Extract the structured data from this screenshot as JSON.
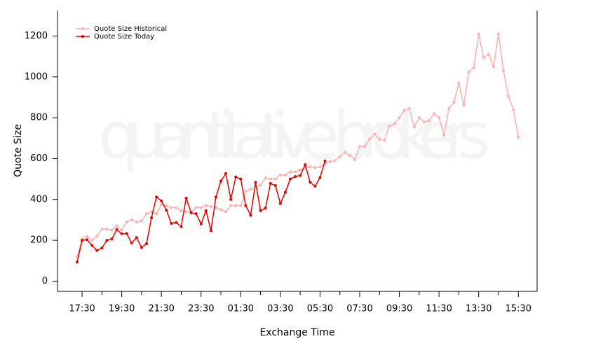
{
  "chart_data": {
    "type": "line",
    "watermark": "quantitative brokers",
    "x_label": "Exchange Time",
    "y_label": "Quote Size",
    "categories": [
      null,
      "17:30",
      null,
      null,
      null,
      null,
      null,
      null,
      null,
      "19:30",
      null,
      null,
      null,
      null,
      null,
      null,
      null,
      "21:30",
      null,
      null,
      null,
      null,
      null,
      null,
      null,
      "23:30",
      null,
      null,
      null,
      null,
      null,
      null,
      null,
      "01:30",
      null,
      null,
      null,
      null,
      null,
      null,
      null,
      "03:30",
      null,
      null,
      null,
      null,
      null,
      null,
      null,
      "05:30",
      null,
      null,
      null,
      null,
      null,
      null,
      null,
      "07:30",
      null,
      null,
      null,
      null,
      null,
      null,
      null,
      "09:30",
      null,
      null,
      null,
      null,
      null,
      null,
      null,
      "11:30",
      null,
      null,
      null,
      null,
      null,
      null,
      null,
      "13:30",
      null,
      null,
      null,
      null,
      null,
      null,
      null,
      "15:30"
    ],
    "series": [
      {
        "name": "Quote Size Historical",
        "color": "#ffb0b0",
        "values": [
          120,
          205,
          220,
          200,
          220,
          255,
          255,
          250,
          270,
          250,
          290,
          300,
          290,
          295,
          330,
          340,
          330,
          375,
          370,
          360,
          360,
          345,
          340,
          340,
          360,
          360,
          370,
          365,
          360,
          350,
          340,
          370,
          370,
          370,
          440,
          450,
          460,
          470,
          505,
          500,
          500,
          520,
          520,
          535,
          535,
          545,
          555,
          560,
          555,
          560,
          575,
          585,
          590,
          610,
          630,
          615,
          595,
          660,
          660,
          695,
          720,
          695,
          690,
          760,
          770,
          800,
          835,
          845,
          755,
          800,
          780,
          785,
          820,
          800,
          715,
          845,
          875,
          970,
          860,
          1025,
          1045,
          1210,
          1095,
          1110,
          1050,
          1210,
          1030,
          905,
          840,
          705
        ]
      },
      {
        "name": "Quote Size Today",
        "color": "#e00000",
        "values": [
          93,
          200,
          203,
          175,
          150,
          162,
          200,
          207,
          252,
          232,
          233,
          187,
          213,
          165,
          183,
          310,
          412,
          393,
          348,
          283,
          287,
          267,
          407,
          335,
          330,
          280,
          345,
          247,
          412,
          490,
          527,
          400,
          510,
          500,
          370,
          323,
          483,
          345,
          358,
          478,
          468,
          380,
          435,
          500,
          512,
          517,
          570,
          485,
          465,
          507,
          588,
          null,
          null,
          null,
          null,
          null,
          null,
          null,
          null,
          null,
          null,
          null,
          null,
          null,
          null,
          null,
          null,
          null,
          null,
          null,
          null,
          null,
          null,
          null,
          null,
          null,
          null,
          null,
          null,
          null,
          null,
          null,
          null,
          null,
          null,
          null,
          null,
          null,
          null,
          null
        ]
      }
    ],
    "ylim": [
      -50,
      1325
    ],
    "yticks": [
      0,
      200,
      400,
      600,
      800,
      1000,
      1200
    ],
    "legend": "top-left"
  }
}
